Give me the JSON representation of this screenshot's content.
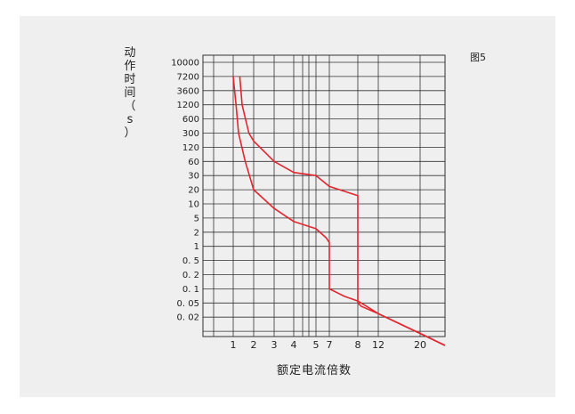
{
  "figure_label": "图5",
  "chart_data": {
    "type": "line",
    "title": "",
    "xlabel": "额定电流倍数",
    "ylabel": "动作时间（s）",
    "ylabel_chars": [
      "动",
      "作",
      "时",
      "间",
      "（",
      "s",
      "）"
    ],
    "x_ticks": [
      "1",
      "2",
      "3",
      "4",
      "5",
      "7",
      "8",
      "12",
      "20"
    ],
    "y_ticks": [
      "10000",
      "7200",
      "3600",
      "1200",
      "600",
      "300",
      "120",
      "60",
      "30",
      "20",
      "10",
      "5",
      "2",
      "1",
      "0. 5",
      "0. 2",
      "0. 1",
      "0. 05",
      "0. 02"
    ],
    "grid": true,
    "line_color": "#e3262e",
    "series": [
      {
        "points": [
          [
            1,
            7200
          ],
          [
            1.05,
            3600
          ],
          [
            1.1,
            1200
          ],
          [
            1.2,
            300
          ],
          [
            1.5,
            60
          ],
          [
            2,
            20
          ],
          [
            3,
            8
          ],
          [
            4,
            4
          ],
          [
            5,
            2.5
          ],
          [
            6.5,
            1.5
          ],
          [
            7,
            1.2
          ],
          [
            7,
            0.1
          ],
          [
            7.5,
            0.07
          ],
          [
            8,
            0.055
          ],
          [
            9,
            0.045
          ],
          [
            12,
            0.025
          ],
          [
            20,
            0.009
          ],
          [
            30,
            0.005
          ]
        ]
      },
      {
        "points": [
          [
            1.25,
            7200
          ],
          [
            1.35,
            1200
          ],
          [
            1.7,
            300
          ],
          [
            2,
            180
          ],
          [
            3,
            60
          ],
          [
            4,
            35
          ],
          [
            5,
            30
          ],
          [
            7,
            22
          ],
          [
            8,
            15
          ],
          [
            8,
            0.05
          ],
          [
            8.6,
            0.04
          ],
          [
            12,
            0.025
          ],
          [
            20,
            0.009
          ],
          [
            30,
            0.005
          ]
        ]
      }
    ]
  }
}
